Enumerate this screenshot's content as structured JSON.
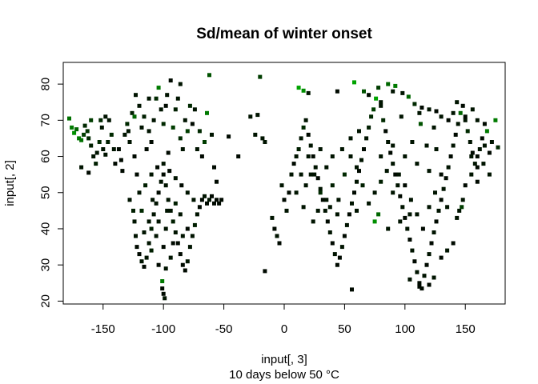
{
  "chart_data": {
    "type": "scatter",
    "title": "Sd/mean of winter onset",
    "xlabel": "input[, 3]",
    "xlabel_sub": "10 days below  50 °C",
    "ylabel": "input[, 2]",
    "xlim": [
      -183,
      183
    ],
    "ylim": [
      19.2,
      86
    ],
    "x_ticks": [
      -150,
      -100,
      -50,
      0,
      50,
      100,
      150
    ],
    "y_ticks": [
      20,
      30,
      40,
      50,
      60,
      70,
      80
    ],
    "marker": "filled-square",
    "color_scale": [
      "#000000",
      "#00cc00"
    ],
    "notes": "Dense clouds of points over North America and Eurasia plus scattered high-latitude points; color ranges black (low sd/mean) to green (high sd/mean). Values below are an approximate reading of the visible points, each [x, y, colorLevel 0-1].",
    "points": [
      [
        -178,
        70.5,
        0.55
      ],
      [
        -176,
        68,
        0.6
      ],
      [
        -174,
        66.5,
        0.7
      ],
      [
        -172,
        67.5,
        0.5
      ],
      [
        -170,
        65,
        0.6
      ],
      [
        -168,
        64.5,
        0.55
      ],
      [
        -166,
        66,
        0.3
      ],
      [
        -165,
        68.5,
        0.2
      ],
      [
        -163,
        67,
        0.25
      ],
      [
        -162,
        65,
        0.2
      ],
      [
        -160,
        63,
        0.15
      ],
      [
        -158,
        60,
        0.1
      ],
      [
        -156,
        58,
        0.15
      ],
      [
        -155,
        61,
        0.1
      ],
      [
        -153,
        64,
        0.2
      ],
      [
        -151,
        68,
        0.1
      ],
      [
        -150,
        62,
        0.1
      ],
      [
        -148,
        60.5,
        0.1
      ],
      [
        -146,
        64,
        0.15
      ],
      [
        -145,
        70,
        0.1
      ],
      [
        -143,
        66,
        0.2
      ],
      [
        -141,
        62,
        0.1
      ],
      [
        -140,
        58,
        0.05
      ],
      [
        -148,
        71,
        0.1
      ],
      [
        -152,
        70,
        0.2
      ],
      [
        -160,
        70,
        0.3
      ],
      [
        -168,
        57,
        0.1
      ],
      [
        -162,
        55.5,
        0.05
      ],
      [
        -137,
        62,
        0.05
      ],
      [
        -135,
        59,
        0.05
      ],
      [
        -134,
        56,
        0.05
      ],
      [
        -132,
        66,
        0.1
      ],
      [
        -130,
        69,
        0.2
      ],
      [
        -128,
        64,
        0.1
      ],
      [
        -126,
        72,
        0.15
      ],
      [
        -124,
        60,
        0.05
      ],
      [
        -122,
        55,
        0.05
      ],
      [
        -120,
        74,
        0.1
      ],
      [
        -118,
        68,
        0.1
      ],
      [
        -116,
        71,
        0.15
      ],
      [
        -114,
        62,
        0.05
      ],
      [
        -112,
        67,
        0.1
      ],
      [
        -110,
        64,
        0.05
      ],
      [
        -108,
        70,
        0.1
      ],
      [
        -106,
        76,
        0.2
      ],
      [
        -104,
        79,
        0.6
      ],
      [
        -102,
        73,
        0.1
      ],
      [
        -100,
        69,
        0.2
      ],
      [
        -98,
        74,
        0.05
      ],
      [
        -96,
        61,
        0.05
      ],
      [
        -94,
        81,
        0.05
      ],
      [
        -92,
        68,
        0.3
      ],
      [
        -90,
        73,
        0.15
      ],
      [
        -88,
        76,
        0.1
      ],
      [
        -86,
        65,
        0.2
      ],
      [
        -84,
        62,
        0.1
      ],
      [
        -82,
        70,
        0.1
      ],
      [
        -80,
        67,
        0.3
      ],
      [
        -78,
        74,
        0.2
      ],
      [
        -76,
        69,
        0.05
      ],
      [
        -74,
        73,
        0.1
      ],
      [
        -72,
        62,
        0.1
      ],
      [
        -70,
        67,
        0.2
      ],
      [
        -68,
        60,
        0.05
      ],
      [
        -66,
        64,
        0.3
      ],
      [
        -64,
        72,
        0.6
      ],
      [
        -62,
        82.5,
        0.4
      ],
      [
        -60,
        66,
        0.1
      ],
      [
        -58,
        57,
        0.05
      ],
      [
        -56,
        53,
        0.05
      ],
      [
        -112,
        76,
        0.1
      ],
      [
        -123,
        77,
        0.1
      ],
      [
        -97,
        77,
        0.1
      ],
      [
        -86,
        80,
        0.1
      ],
      [
        -124,
        71,
        0.5
      ],
      [
        -129,
        67,
        0.1
      ],
      [
        -128,
        48,
        0.1
      ],
      [
        -125,
        45,
        0.15
      ],
      [
        -124,
        42,
        0.1
      ],
      [
        -123,
        38,
        0.1
      ],
      [
        -122,
        35,
        0.05
      ],
      [
        -120,
        33,
        0.05
      ],
      [
        -118,
        31,
        0.1
      ],
      [
        -116,
        29.5,
        0.05
      ],
      [
        -114,
        32,
        0.1
      ],
      [
        -112,
        36,
        0.1
      ],
      [
        -110,
        40,
        0.15
      ],
      [
        -108,
        44,
        0.1
      ],
      [
        -106,
        47,
        0.1
      ],
      [
        -104,
        50,
        0.05
      ],
      [
        -102,
        53,
        0.1
      ],
      [
        -100,
        55,
        0.05
      ],
      [
        -98,
        52,
        0.1
      ],
      [
        -96,
        48,
        0.1
      ],
      [
        -94,
        45,
        0.1
      ],
      [
        -92,
        42,
        0.15
      ],
      [
        -90,
        39,
        0.1
      ],
      [
        -88,
        36,
        0.05
      ],
      [
        -86,
        33,
        0.05
      ],
      [
        -84,
        30,
        0.05
      ],
      [
        -82,
        28.5,
        0.05
      ],
      [
        -80,
        31,
        0.1
      ],
      [
        -78,
        35,
        0.1
      ],
      [
        -76,
        38,
        0.1
      ],
      [
        -74,
        41,
        0.15
      ],
      [
        -72,
        44,
        0.1
      ],
      [
        -70,
        46,
        0.05
      ],
      [
        -68,
        48,
        0.05
      ],
      [
        -66,
        49,
        0.1
      ],
      [
        -64,
        47,
        0.05
      ],
      [
        -62,
        48,
        0.1
      ],
      [
        -60,
        49,
        0.05
      ],
      [
        -58,
        47,
        0.05
      ],
      [
        -56,
        48,
        0.05
      ],
      [
        -54,
        47,
        0.05
      ],
      [
        -52,
        48,
        0.05
      ],
      [
        -120,
        50,
        0.1
      ],
      [
        -115,
        52,
        0.15
      ],
      [
        -110,
        55,
        0.1
      ],
      [
        -105,
        57,
        0.05
      ],
      [
        -100,
        58,
        0.1
      ],
      [
        -95,
        56,
        0.05
      ],
      [
        -90,
        54,
        0.1
      ],
      [
        -85,
        52,
        0.05
      ],
      [
        -80,
        50,
        0.1
      ],
      [
        -75,
        48,
        0.1
      ],
      [
        -118,
        45,
        0.2
      ],
      [
        -112,
        42,
        0.1
      ],
      [
        -106,
        38,
        0.1
      ],
      [
        -100,
        35,
        0.05
      ],
      [
        -94,
        32,
        0.1
      ],
      [
        -104,
        30,
        0.05
      ],
      [
        -98,
        29,
        0.1
      ],
      [
        -110,
        34,
        0.15
      ],
      [
        -116,
        39,
        0.1
      ],
      [
        -86,
        44,
        0.1
      ],
      [
        -80,
        40,
        0.05
      ],
      [
        -92,
        36,
        0.05
      ],
      [
        -98,
        40,
        0.1
      ],
      [
        -104,
        42,
        0.1
      ],
      [
        -109,
        48,
        0.1
      ],
      [
        -97,
        45,
        0.1
      ],
      [
        -90,
        47,
        0.15
      ],
      [
        -84,
        38,
        0.1
      ],
      [
        -101,
        25.5,
        0.6
      ],
      [
        -100,
        22,
        0.05
      ],
      [
        -99,
        20.8,
        0.1
      ],
      [
        -101,
        23.5,
        0.05
      ],
      [
        -28,
        71,
        0.1
      ],
      [
        -22,
        71.5,
        0.1
      ],
      [
        -20,
        82,
        0.3
      ],
      [
        -18,
        65,
        0.1
      ],
      [
        -16,
        64,
        0.1
      ],
      [
        -24,
        66,
        0.1
      ],
      [
        -38,
        60,
        0.05
      ],
      [
        -46,
        65.5,
        0.05
      ],
      [
        -16,
        28.3,
        0.05
      ],
      [
        -10,
        43,
        0.1
      ],
      [
        -8,
        40,
        0.05
      ],
      [
        -6,
        38,
        0.1
      ],
      [
        -4,
        36,
        0.05
      ],
      [
        -2,
        52,
        0.1
      ],
      [
        0,
        48,
        0.05
      ],
      [
        2,
        45,
        0.1
      ],
      [
        4,
        50,
        0.05
      ],
      [
        6,
        55,
        0.1
      ],
      [
        8,
        58,
        0.05
      ],
      [
        10,
        60,
        0.1
      ],
      [
        12,
        62,
        0.15
      ],
      [
        14,
        65,
        0.1
      ],
      [
        16,
        68,
        0.2
      ],
      [
        18,
        70,
        0.1
      ],
      [
        20,
        66,
        0.05
      ],
      [
        22,
        63,
        0.1
      ],
      [
        24,
        60,
        0.05
      ],
      [
        26,
        57,
        0.1
      ],
      [
        28,
        54,
        0.05
      ],
      [
        30,
        51,
        0.1
      ],
      [
        32,
        48,
        0.05
      ],
      [
        34,
        45,
        0.1
      ],
      [
        36,
        42,
        0.05
      ],
      [
        38,
        39,
        0.1
      ],
      [
        40,
        36,
        0.05
      ],
      [
        42,
        33,
        0.1
      ],
      [
        44,
        30,
        0.05
      ],
      [
        46,
        32,
        0.05
      ],
      [
        48,
        35,
        0.1
      ],
      [
        50,
        38,
        0.05
      ],
      [
        52,
        41,
        0.1
      ],
      [
        54,
        44,
        0.05
      ],
      [
        56,
        47,
        0.1
      ],
      [
        58,
        50,
        0.05
      ],
      [
        60,
        53,
        0.1
      ],
      [
        62,
        56,
        0.05
      ],
      [
        64,
        59,
        0.1
      ],
      [
        66,
        62,
        0.05
      ],
      [
        68,
        65,
        0.1
      ],
      [
        70,
        68,
        0.15
      ],
      [
        72,
        71,
        0.2
      ],
      [
        74,
        73,
        0.3
      ],
      [
        76,
        76,
        0.8
      ],
      [
        78,
        79,
        0.3
      ],
      [
        80,
        74,
        0.1
      ],
      [
        82,
        70,
        0.2
      ],
      [
        84,
        67,
        0.05
      ],
      [
        86,
        64,
        0.1
      ],
      [
        88,
        61,
        0.05
      ],
      [
        90,
        58,
        0.1
      ],
      [
        92,
        55,
        0.05
      ],
      [
        94,
        52,
        0.1
      ],
      [
        96,
        49,
        0.05
      ],
      [
        98,
        46,
        0.1
      ],
      [
        100,
        43,
        0.05
      ],
      [
        102,
        40,
        0.1
      ],
      [
        104,
        37,
        0.05
      ],
      [
        106,
        34,
        0.1
      ],
      [
        108,
        31,
        0.05
      ],
      [
        110,
        28,
        0.1
      ],
      [
        112,
        25,
        0.05
      ],
      [
        114,
        23.5,
        0.05
      ],
      [
        116,
        27,
        0.1
      ],
      [
        118,
        30,
        0.05
      ],
      [
        120,
        33,
        0.1
      ],
      [
        122,
        36,
        0.05
      ],
      [
        124,
        39,
        0.1
      ],
      [
        126,
        42,
        0.05
      ],
      [
        128,
        45,
        0.1
      ],
      [
        130,
        48,
        0.05
      ],
      [
        132,
        51,
        0.1
      ],
      [
        134,
        54,
        0.05
      ],
      [
        136,
        57,
        0.1
      ],
      [
        138,
        60,
        0.05
      ],
      [
        140,
        63,
        0.1
      ],
      [
        142,
        66,
        0.05
      ],
      [
        144,
        69,
        0.1
      ],
      [
        146,
        72,
        0.5
      ],
      [
        148,
        74,
        0.05
      ],
      [
        150,
        70,
        0.1
      ],
      [
        152,
        67,
        0.2
      ],
      [
        154,
        64,
        0.1
      ],
      [
        156,
        61,
        0.05
      ],
      [
        158,
        58,
        0.1
      ],
      [
        160,
        60,
        0.05
      ],
      [
        162,
        62,
        0.1
      ],
      [
        164,
        65,
        0.05
      ],
      [
        166,
        63,
        0.1
      ],
      [
        168,
        67,
        0.6
      ],
      [
        170,
        61,
        0.05
      ],
      [
        172,
        64,
        0.1
      ],
      [
        175,
        70,
        0.6
      ],
      [
        177,
        62.5,
        0.2
      ],
      [
        56,
        23.2,
        0.05
      ],
      [
        112,
        24,
        0.05
      ],
      [
        104,
        26,
        0.1
      ],
      [
        120,
        24.5,
        0.05
      ],
      [
        124,
        26.5,
        0.1
      ],
      [
        130,
        32,
        0.05
      ],
      [
        135,
        34,
        0.1
      ],
      [
        140,
        36,
        0.05
      ],
      [
        143,
        43,
        0.1
      ],
      [
        145,
        45,
        0.1
      ],
      [
        148,
        48,
        0.1
      ],
      [
        150,
        52,
        0.05
      ],
      [
        147,
        46,
        0.3
      ],
      [
        155,
        55,
        0.1
      ],
      [
        160,
        53,
        0.05
      ],
      [
        155,
        60,
        0.1
      ],
      [
        170,
        55,
        0.1
      ],
      [
        165,
        58,
        0.1
      ],
      [
        160,
        57,
        0.05
      ],
      [
        12,
        79,
        0.8
      ],
      [
        16,
        78.2,
        0.7
      ],
      [
        20,
        77.5,
        0.1
      ],
      [
        44,
        78,
        0.05
      ],
      [
        58,
        80.5,
        0.8
      ],
      [
        66,
        78,
        0.4
      ],
      [
        70,
        77,
        0.05
      ],
      [
        80,
        75,
        0.1
      ],
      [
        90,
        78,
        0.1
      ],
      [
        92,
        79.5,
        0.6
      ],
      [
        98,
        77.5,
        0.1
      ],
      [
        103,
        76.5,
        0.5
      ],
      [
        108,
        74.5,
        0.2
      ],
      [
        114,
        73.5,
        0.05
      ],
      [
        120,
        73,
        0.1
      ],
      [
        126,
        72.5,
        0.05
      ],
      [
        130,
        71,
        0.1
      ],
      [
        136,
        70,
        0.05
      ],
      [
        140,
        72,
        0.1
      ],
      [
        150,
        71,
        0.05
      ],
      [
        160,
        70,
        0.1
      ],
      [
        166,
        69,
        0.05
      ],
      [
        86,
        80,
        0.5
      ],
      [
        112,
        72,
        0.1
      ],
      [
        156,
        73,
        0.1
      ],
      [
        143,
        75,
        0.1
      ],
      [
        124,
        68,
        0.1
      ],
      [
        113,
        69,
        0.4
      ],
      [
        97,
        71,
        0.1
      ],
      [
        20,
        60,
        0.1
      ],
      [
        25,
        55,
        0.1
      ],
      [
        30,
        50,
        0.2
      ],
      [
        35,
        57,
        0.1
      ],
      [
        40,
        52,
        0.15
      ],
      [
        45,
        48,
        0.1
      ],
      [
        50,
        55,
        0.2
      ],
      [
        55,
        60,
        0.1
      ],
      [
        60,
        57,
        0.1
      ],
      [
        65,
        52,
        0.15
      ],
      [
        70,
        47,
        0.1
      ],
      [
        75,
        50,
        0.1
      ],
      [
        80,
        53,
        0.15
      ],
      [
        85,
        56,
        0.1
      ],
      [
        90,
        50,
        0.1
      ],
      [
        95,
        55,
        0.1
      ],
      [
        100,
        52,
        0.05
      ],
      [
        105,
        48,
        0.1
      ],
      [
        110,
        44,
        0.1
      ],
      [
        115,
        40,
        0.05
      ],
      [
        120,
        46,
        0.1
      ],
      [
        125,
        50,
        0.1
      ],
      [
        130,
        55,
        0.05
      ],
      [
        135,
        46,
        0.1
      ],
      [
        40,
        60,
        0.1
      ],
      [
        48,
        62,
        0.1
      ],
      [
        55,
        65,
        0.1
      ],
      [
        62,
        67,
        0.1
      ],
      [
        30,
        62,
        0.1
      ],
      [
        22,
        55,
        0.1
      ],
      [
        35,
        48,
        0.1
      ],
      [
        44,
        44,
        0.1
      ],
      [
        28,
        45,
        0.1
      ],
      [
        18,
        52,
        0.1
      ],
      [
        10,
        50,
        0.1
      ],
      [
        14,
        55,
        0.1
      ],
      [
        16,
        46,
        0.1
      ],
      [
        24,
        42,
        0.1
      ],
      [
        38,
        46,
        0.1
      ],
      [
        60,
        45,
        0.1
      ],
      [
        78,
        44,
        0.5
      ],
      [
        75,
        42,
        0.7
      ],
      [
        86,
        40,
        0.1
      ],
      [
        96,
        42,
        0.1
      ],
      [
        104,
        44,
        0.1
      ],
      [
        80,
        60,
        0.1
      ],
      [
        90,
        63,
        0.1
      ],
      [
        100,
        60,
        0.1
      ],
      [
        110,
        58,
        0.1
      ],
      [
        120,
        56,
        0.1
      ],
      [
        106,
        64,
        0.1
      ],
      [
        118,
        63,
        0.1
      ],
      [
        126,
        62,
        0.1
      ]
    ]
  }
}
